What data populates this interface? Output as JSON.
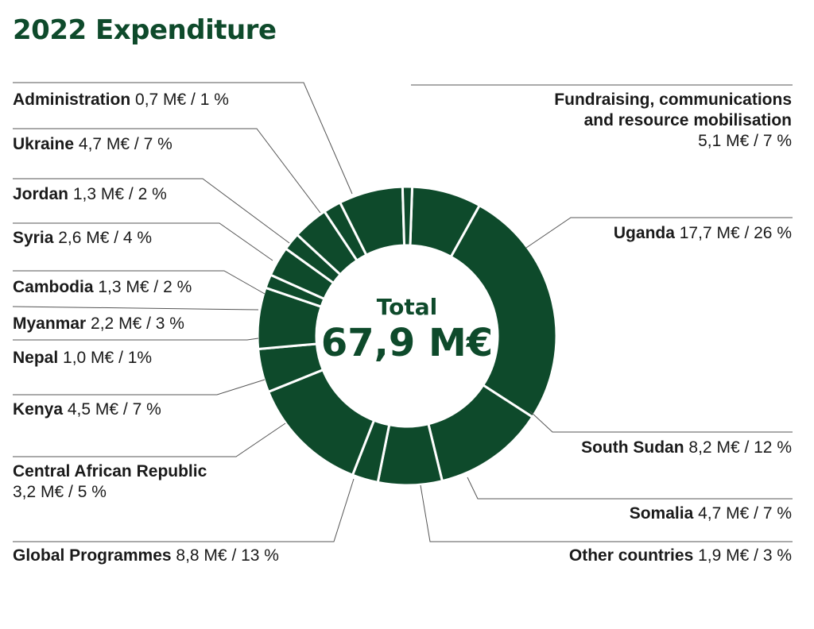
{
  "title": "2022 Expenditure",
  "total": {
    "label": "Total",
    "value": "67,9 M€"
  },
  "colors": {
    "slice": "#0e4a2b",
    "leader": "#555555",
    "separator": "#ffffff"
  },
  "chart_data": {
    "type": "pie",
    "title": "2022 Expenditure",
    "unit": "M€",
    "slices": [
      {
        "name": "Fundraising, communications and resource mobilisation",
        "value": 5.1,
        "amount_text": "5,1 M€",
        "pct_text": "7 %"
      },
      {
        "name": "Uganda",
        "value": 17.7,
        "amount_text": "17,7 M€",
        "pct_text": "26 %"
      },
      {
        "name": "South Sudan",
        "value": 8.2,
        "amount_text": "8,2 M€",
        "pct_text": "12 %"
      },
      {
        "name": "Somalia",
        "value": 4.7,
        "amount_text": "4,7 M€",
        "pct_text": "7 %"
      },
      {
        "name": "Other countries",
        "value": 1.9,
        "amount_text": "1,9 M€",
        "pct_text": "3 %"
      },
      {
        "name": "Global Programmes",
        "value": 8.8,
        "amount_text": "8,8 M€",
        "pct_text": "13 %"
      },
      {
        "name": "Central African Republic",
        "value": 3.2,
        "amount_text": "3,2 M€",
        "pct_text": "5 %"
      },
      {
        "name": "Kenya",
        "value": 4.5,
        "amount_text": "4,5 M€",
        "pct_text": "7 %"
      },
      {
        "name": "Nepal",
        "value": 1.0,
        "amount_text": "1,0 M€",
        "pct_text": "1%"
      },
      {
        "name": "Myanmar",
        "value": 2.2,
        "amount_text": "2,2 M€",
        "pct_text": "3 %"
      },
      {
        "name": "Cambodia",
        "value": 1.3,
        "amount_text": "1,3 M€",
        "pct_text": "2 %"
      },
      {
        "name": "Syria",
        "value": 2.6,
        "amount_text": "2,6 M€",
        "pct_text": "4 %"
      },
      {
        "name": "Jordan",
        "value": 1.3,
        "amount_text": "1,3 M€",
        "pct_text": "2 %"
      },
      {
        "name": "Ukraine",
        "value": 4.7,
        "amount_text": "4,7 M€",
        "pct_text": "7 %"
      },
      {
        "name": "Administration",
        "value": 0.7,
        "amount_text": "0,7 M€",
        "pct_text": "1 %"
      }
    ]
  },
  "labels": {
    "fundraising": {
      "name_line1": "Fundraising, communications",
      "name_line2": "and resource mobilisation",
      "value": "5,1 M€ / 7 %"
    },
    "uganda": {
      "name": "Uganda",
      "value": "17,7 M€ / 26 %"
    },
    "south_sudan": {
      "name": "South Sudan",
      "value": "8,2 M€ / 12 %"
    },
    "somalia": {
      "name": "Somalia",
      "value": "4,7 M€ / 7 %"
    },
    "other": {
      "name": "Other countries",
      "value": "1,9 M€ / 3 %"
    },
    "global": {
      "name": "Global Programmes",
      "value": "8,8 M€ / 13 %"
    },
    "car": {
      "name": "Central African Republic",
      "value": "3,2 M€ / 5 %"
    },
    "kenya": {
      "name": "Kenya",
      "value": "4,5 M€ / 7 %"
    },
    "nepal": {
      "name": "Nepal",
      "value": "1,0 M€ / 1%"
    },
    "myanmar": {
      "name": "Myanmar",
      "value": "2,2 M€ / 3 %"
    },
    "cambodia": {
      "name": "Cambodia",
      "value": "1,3 M€ / 2 %"
    },
    "syria": {
      "name": "Syria",
      "value": "2,6 M€ / 4 %"
    },
    "jordan": {
      "name": "Jordan",
      "value": "1,3 M€ / 2 %"
    },
    "ukraine": {
      "name": "Ukraine",
      "value": "4,7 M€ / 7 %"
    },
    "administration": {
      "name": "Administration",
      "value": "0,7 M€ / 1 %"
    }
  }
}
